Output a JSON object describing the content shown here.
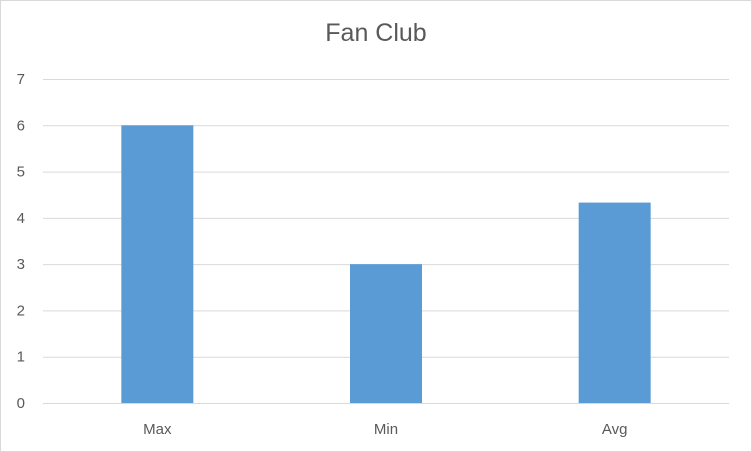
{
  "chart_data": {
    "type": "bar",
    "title": "Fan Club",
    "categories": [
      "Max",
      "Min",
      "Avg"
    ],
    "values": [
      6,
      3,
      4.33
    ],
    "xlabel": "",
    "ylabel": "",
    "ylim": [
      0,
      7
    ],
    "yticks": [
      "0",
      "1",
      "2",
      "3",
      "4",
      "5",
      "6",
      "7"
    ],
    "grid": true,
    "legend": "none",
    "colors": {
      "bar": "#5b9bd5",
      "grid": "#d9d9d9",
      "axis": "#d9d9d9",
      "text": "#595959"
    }
  }
}
